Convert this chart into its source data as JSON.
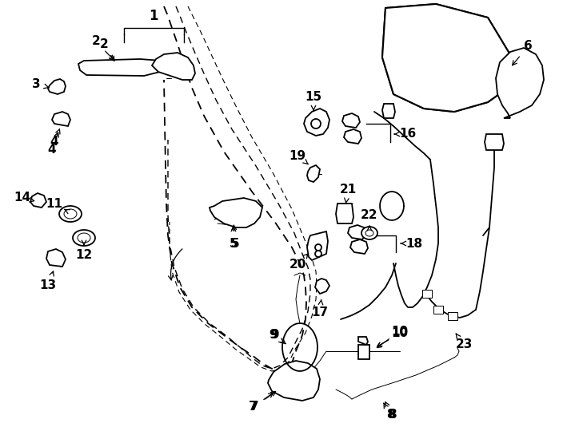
{
  "background_color": "#ffffff",
  "line_color": "#000000",
  "fig_width": 7.34,
  "fig_height": 5.4,
  "dpi": 100,
  "lw": 1.3,
  "lw_thin": 0.7,
  "lw_thick": 1.8
}
